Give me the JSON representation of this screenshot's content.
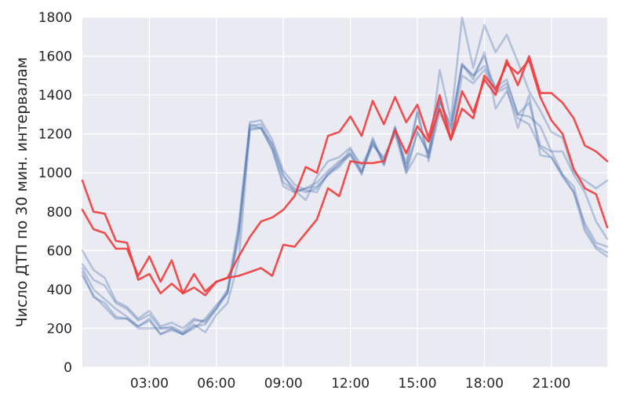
{
  "chart_data": {
    "type": "line",
    "title": "",
    "xlabel": "",
    "ylabel": "Число ДТП по 30 мин. интервалам",
    "ylim": [
      0,
      1800
    ],
    "xlim_slots": [
      0,
      47
    ],
    "grid": true,
    "legend": "none",
    "x_slot_minutes": 30,
    "x_ticks": [
      {
        "slot": 6,
        "label": "03:00"
      },
      {
        "slot": 12,
        "label": "06:00"
      },
      {
        "slot": 18,
        "label": "09:00"
      },
      {
        "slot": 24,
        "label": "12:00"
      },
      {
        "slot": 30,
        "label": "15:00"
      },
      {
        "slot": 36,
        "label": "18:00"
      },
      {
        "slot": 42,
        "label": "21:00"
      }
    ],
    "y_ticks": [
      0,
      200,
      400,
      600,
      800,
      1000,
      1200,
      1400,
      1600,
      1800
    ],
    "colors": {
      "background": "#EAEAF2",
      "grid": "#FFFFFF",
      "weekday": "#4C72B0",
      "weekend": "#F03C3C"
    },
    "series": [
      {
        "group": "weekday",
        "values": [
          600,
          500,
          460,
          340,
          310,
          250,
          290,
          210,
          230,
          200,
          250,
          230,
          310,
          400,
          740,
          1260,
          1270,
          1170,
          1010,
          940,
          910,
          900,
          1000,
          1040,
          1120,
          1040,
          1150,
          1070,
          1210,
          1050,
          1320,
          1080,
          1530,
          1270,
          1800,
          1540,
          1760,
          1620,
          1710,
          1570,
          1420,
          1320,
          1210,
          1180,
          1000,
          960,
          920,
          960
        ]
      },
      {
        "group": "weekday",
        "values": [
          530,
          450,
          420,
          330,
          300,
          240,
          270,
          200,
          210,
          180,
          240,
          240,
          300,
          380,
          700,
          1240,
          1250,
          1140,
          980,
          920,
          900,
          920,
          990,
          1030,
          1100,
          1000,
          1170,
          1050,
          1230,
          1030,
          1310,
          1060,
          1360,
          1250,
          1560,
          1500,
          1600,
          1420,
          1460,
          1300,
          1290,
          1240,
          1110,
          1110,
          990,
          900,
          750,
          660
        ]
      },
      {
        "group": "weekday",
        "values": [
          510,
          400,
          350,
          300,
          260,
          210,
          250,
          170,
          200,
          170,
          220,
          180,
          270,
          330,
          550,
          1220,
          1230,
          1120,
          950,
          910,
          860,
          980,
          1060,
          1080,
          1130,
          1010,
          1140,
          1080,
          1200,
          1000,
          1100,
          1080,
          1310,
          1180,
          1500,
          1460,
          1530,
          1410,
          1440,
          1230,
          1400,
          1090,
          1080,
          980,
          900,
          700,
          610,
          570
        ]
      },
      {
        "group": "weekday",
        "values": [
          490,
          360,
          330,
          260,
          250,
          200,
          200,
          200,
          200,
          170,
          210,
          220,
          300,
          390,
          660,
          1250,
          1230,
          1120,
          930,
          900,
          920,
          930,
          990,
          1050,
          1090,
          990,
          1160,
          1040,
          1240,
          1000,
          1210,
          1100,
          1370,
          1220,
          1560,
          1480,
          1620,
          1330,
          1420,
          1280,
          1250,
          1130,
          1080,
          990,
          930,
          720,
          620,
          590
        ]
      },
      {
        "group": "weekday",
        "values": [
          470,
          370,
          310,
          250,
          250,
          210,
          240,
          170,
          190,
          170,
          200,
          250,
          320,
          380,
          700,
          1230,
          1230,
          1150,
          990,
          900,
          920,
          950,
          1010,
          1060,
          1100,
          1000,
          1180,
          1040,
          1230,
          1020,
          1210,
          1100,
          1380,
          1230,
          1550,
          1500,
          1550,
          1440,
          1480,
          1300,
          1360,
          1140,
          1110,
          990,
          900,
          740,
          640,
          620
        ]
      },
      {
        "group": "weekend",
        "values": [
          960,
          800,
          790,
          650,
          640,
          450,
          480,
          380,
          430,
          380,
          410,
          370,
          440,
          460,
          470,
          490,
          510,
          470,
          630,
          620,
          690,
          760,
          920,
          880,
          1060,
          1050,
          1050,
          1060,
          1220,
          1100,
          1240,
          1160,
          1330,
          1170,
          1330,
          1280,
          1500,
          1430,
          1560,
          1510,
          1580,
          1390,
          1270,
          1200,
          1020,
          920,
          890,
          720
        ]
      },
      {
        "group": "weekend",
        "values": [
          810,
          710,
          690,
          610,
          610,
          470,
          570,
          440,
          550,
          380,
          480,
          390,
          440,
          460,
          570,
          670,
          750,
          770,
          810,
          880,
          1030,
          1000,
          1190,
          1210,
          1290,
          1190,
          1370,
          1250,
          1390,
          1260,
          1350,
          1180,
          1400,
          1170,
          1420,
          1310,
          1480,
          1400,
          1580,
          1450,
          1600,
          1410,
          1410,
          1360,
          1280,
          1140,
          1110,
          1060
        ]
      }
    ]
  }
}
